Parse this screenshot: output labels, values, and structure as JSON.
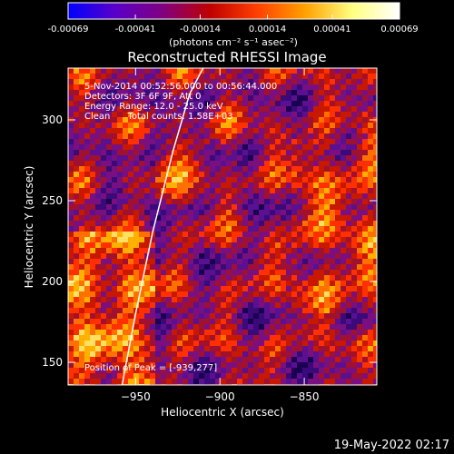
{
  "colorbar": {
    "tick_labels": [
      "-0.00069",
      "-0.00041",
      "-0.00014",
      "0.00014",
      "0.00041",
      "0.00069"
    ],
    "tick_values": [
      -0.00069,
      -0.00041,
      -0.00014,
      0.00014,
      0.00041,
      0.00069
    ],
    "range": [
      -0.00069,
      0.00069
    ],
    "units_label": "(photons cm⁻² s⁻¹ asec⁻²)",
    "colors": [
      "#0000ff",
      "#5a00c8",
      "#800080",
      "#c00000",
      "#ff4000",
      "#ffa000",
      "#ffff80",
      "#ffffff"
    ]
  },
  "image": {
    "title": "Reconstructed RHESSI Image",
    "info_lines": [
      "5-Nov-2014 00:52:56.000 to 00:56:44.000",
      "Detectors: 3F 6F 9F, Att 0",
      "Energy Range: 12.0 - 25.0 keV",
      "Clean      Total counts: 1.58E+03"
    ],
    "peak_label": "Position of Peak = [-939,277]",
    "timestamp": "19-May-2022 02:17"
  },
  "chart_data": {
    "type": "heatmap",
    "title": "Reconstructed RHESSI Image",
    "xlabel": "Heliocentric X (arcsec)",
    "ylabel": "Heliocentric Y (arcsec)",
    "xlim": [
      -990,
      -807
    ],
    "ylim": [
      136,
      332
    ],
    "x_ticks": [
      -950,
      -900,
      -850
    ],
    "x_tick_labels": [
      "−950",
      "−900",
      "−850"
    ],
    "y_ticks": [
      150,
      200,
      250,
      300
    ],
    "y_tick_labels": [
      "150",
      "200",
      "250",
      "300"
    ],
    "peak_position": [
      -939,
      277
    ],
    "limb_curve": {
      "x": [
        -958,
        -950,
        -940,
        -928,
        -918,
        -910
      ],
      "y": [
        136,
        180,
        230,
        280,
        316,
        332
      ]
    },
    "grid": false
  }
}
